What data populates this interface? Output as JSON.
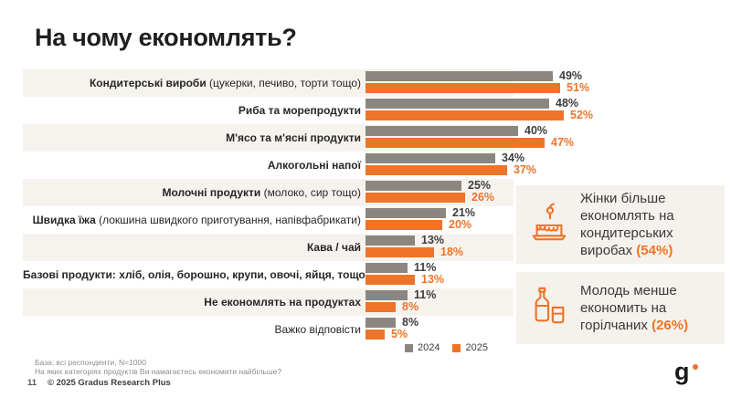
{
  "page": {
    "title": "На чому економлять?"
  },
  "colors": {
    "accent_orange": "#ED7428",
    "bar_gray": "#8C8680",
    "row_stripe": "#F6F3EF",
    "callout_bg": "#F5F1EC",
    "value_text_2024": "#3d3d3d"
  },
  "chart_data": {
    "type": "bar",
    "orientation": "horizontal",
    "unit": "%",
    "title": "На чому економлять?",
    "xlim": [
      0,
      55
    ],
    "legend_position": "bottom",
    "categories": [
      "Кондитерські вироби (цукерки, печиво, торти тощо)",
      "Риба та морепродукти",
      "М'ясо та м'ясні продукти",
      "Алкогольні напої",
      "Молочні продукти (молоко, сир тощо)",
      "Швидка їжа (локшина швидкого приготування, напівфабрикати)",
      "Кава / чай",
      "Базові продукти: хліб, олія, борошно, крупи, овочі, яйця, тощо",
      "Не економлять на продуктах",
      "Важко відповісти"
    ],
    "categories_bold_part": [
      "Кондитерські вироби",
      "Риба та морепродукти",
      "М'ясо та м'ясні продукти",
      "Алкогольні напої",
      "Молочні продукти",
      "Швидка їжа",
      "Кава / чай",
      "Базові продукти: хліб, олія, борошно, крупи, овочі, яйця, тощо",
      "Не економлять на продуктах",
      ""
    ],
    "categories_normal_part": [
      " (цукерки, печиво, торти тощо)",
      "",
      "",
      "",
      " (молоко, сир тощо)",
      " (локшина швидкого приготування, напівфабрикати)",
      "",
      "",
      "",
      "Важко відповісти"
    ],
    "series": [
      {
        "name": "2024",
        "color": "#8C8680",
        "values": [
          49,
          48,
          40,
          34,
          25,
          21,
          13,
          11,
          11,
          8
        ]
      },
      {
        "name": "2025",
        "color": "#ED7428",
        "values": [
          51,
          52,
          47,
          37,
          26,
          20,
          18,
          13,
          8,
          5
        ]
      }
    ]
  },
  "callouts": [
    {
      "icon": "cake-icon",
      "text_before": "Жінки більше економлять на кондитерських виробах ",
      "highlight": "(54%)"
    },
    {
      "icon": "bottle-glass-icon",
      "text_before": "Молодь менше економить на горілчаних ",
      "highlight": "(26%)"
    }
  ],
  "footer": {
    "base_note": "База: всі респонденти, N=1000",
    "question_note": "На яких категоріях продуктів Ви намагаєтесь економити найбільше?",
    "page_number": "11",
    "copyright": "© 2025 Gradus Research Plus",
    "logo_text": "g"
  }
}
